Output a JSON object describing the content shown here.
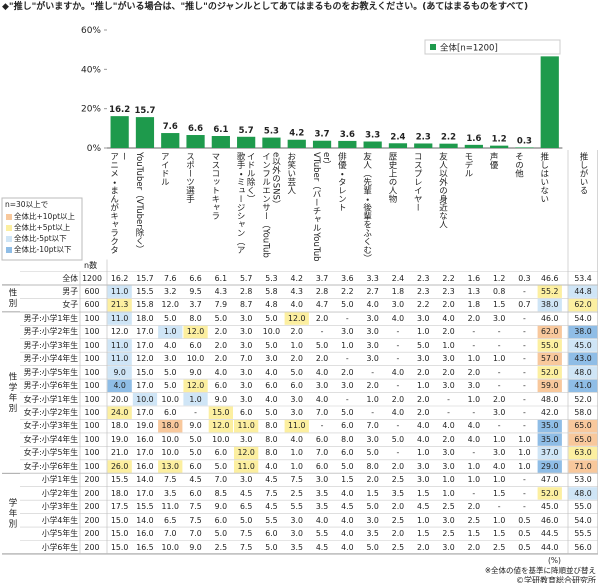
{
  "chart_data": {
    "type": "bar",
    "title": "◆\"推し\"がいますか。\"推し\"がいる場合は、\"推し\"のジャンルとしてあてはまるものをお教えください。(あてはまるものをすべて)",
    "categories": [
      "アニメ・まんがキャラクター",
      "YouTuber（VTuber除く）",
      "アイドル",
      "スポーツ選手",
      "マスコットキャラ",
      "歌手・ミュージシャン（アイドル除く）",
      "インフルエンサー（YouTube以外のSNS）",
      "お笑い芸人",
      "VTuber（バーチャルYouTuber）",
      "俳優・タレント",
      "友人（先輩・後輩をふくむ）",
      "歴史上の人物",
      "コスプレイヤー",
      "友人以外の身近な人",
      "モデル",
      "声優",
      "その他",
      "推しはいない"
    ],
    "series": [
      {
        "name": "全体[n=1200]",
        "color": "#1e9a4c",
        "values": [
          16.2,
          15.7,
          7.6,
          6.6,
          6.1,
          5.7,
          5.3,
          4.2,
          3.7,
          3.6,
          3.3,
          2.4,
          2.3,
          2.2,
          1.6,
          1.2,
          0.3,
          46.6
        ]
      }
    ],
    "ylim": [
      0,
      60
    ],
    "yticks": [
      {
        "value": 0,
        "label": "0%"
      },
      {
        "value": 20,
        "label": "20%"
      },
      {
        "value": 40,
        "label": "40%"
      },
      {
        "value": 60,
        "label": "60%"
      }
    ],
    "legend": "upper-right",
    "table": {
      "n_header": "n数",
      "extra_column": "推しがいる",
      "highlight_title": "n=30以上で",
      "highlight_items": [
        {
          "label": "全体比+10pt以上",
          "color": "#f8c89c",
          "threshold": 10
        },
        {
          "label": "全体比+5pt以上",
          "color": "#fcefa0",
          "threshold": 5
        },
        {
          "label": "全体比-5pt以下",
          "color": "#cfe5f6",
          "threshold": -5
        },
        {
          "label": "全体比-10pt以下",
          "color": "#8fbde6",
          "threshold": -10
        }
      ],
      "total_row": {
        "label": "全体",
        "n": "1200",
        "values": [
          "16.2",
          "15.7",
          "7.6",
          "6.6",
          "6.1",
          "5.7",
          "5.3",
          "4.2",
          "3.7",
          "3.6",
          "3.3",
          "2.4",
          "2.3",
          "2.2",
          "1.6",
          "1.2",
          "0.3",
          "46.6"
        ],
        "extra": "53.4"
      },
      "groups": [
        {
          "label": "性別",
          "rows": [
            {
              "label": "男子",
              "n": "600",
              "values": [
                "11.0",
                "15.5",
                "3.2",
                "9.5",
                "4.3",
                "2.8",
                "5.8",
                "4.3",
                "2.8",
                "2.2",
                "2.7",
                "1.8",
                "2.3",
                "2.3",
                "1.3",
                "0.8",
                "-",
                "55.2"
              ],
              "extra": "44.8"
            },
            {
              "label": "女子",
              "n": "600",
              "values": [
                "21.3",
                "15.8",
                "12.0",
                "3.7",
                "7.9",
                "8.7",
                "4.8",
                "4.0",
                "4.7",
                "5.0",
                "4.0",
                "3.0",
                "2.2",
                "2.0",
                "1.8",
                "1.5",
                "0.7",
                "38.0"
              ],
              "extra": "62.0"
            }
          ]
        },
        {
          "label": "性学年別",
          "rows": [
            {
              "label": "男子:小学1年生",
              "n": "100",
              "values": [
                "11.0",
                "18.0",
                "5.0",
                "8.0",
                "5.0",
                "3.0",
                "5.0",
                "12.0",
                "2.0",
                "-",
                "3.0",
                "4.0",
                "3.0",
                "4.0",
                "2.0",
                "3.0",
                "-",
                "46.0"
              ],
              "extra": "54.0"
            },
            {
              "label": "男子:小学2年生",
              "n": "100",
              "values": [
                "12.0",
                "17.0",
                "1.0",
                "12.0",
                "2.0",
                "3.0",
                "10.0",
                "2.0",
                "-",
                "3.0",
                "3.0",
                "-",
                "1.0",
                "2.0",
                "-",
                "-",
                "-",
                "62.0"
              ],
              "extra": "38.0"
            },
            {
              "label": "男子:小学3年生",
              "n": "100",
              "values": [
                "11.0",
                "17.0",
                "4.0",
                "6.0",
                "2.0",
                "3.0",
                "5.0",
                "1.0",
                "5.0",
                "1.0",
                "3.0",
                "-",
                "5.0",
                "1.0",
                "-",
                "-",
                "-",
                "55.0"
              ],
              "extra": "45.0"
            },
            {
              "label": "男子:小学4年生",
              "n": "100",
              "values": [
                "11.0",
                "12.0",
                "3.0",
                "10.0",
                "2.0",
                "7.0",
                "3.0",
                "2.0",
                "2.0",
                "-",
                "3.0",
                "-",
                "3.0",
                "3.0",
                "1.0",
                "1.0",
                "-",
                "57.0"
              ],
              "extra": "43.0"
            },
            {
              "label": "男子:小学5年生",
              "n": "100",
              "values": [
                "9.0",
                "15.0",
                "5.0",
                "9.0",
                "4.0",
                "3.0",
                "4.0",
                "5.0",
                "4.0",
                "2.0",
                "-",
                "4.0",
                "2.0",
                "2.0",
                "2.0",
                "-",
                "-",
                "52.0"
              ],
              "extra": "48.0"
            },
            {
              "label": "男子:小学6年生",
              "n": "100",
              "values": [
                "4.0",
                "17.0",
                "5.0",
                "12.0",
                "6.0",
                "3.0",
                "6.0",
                "6.0",
                "3.0",
                "3.0",
                "2.0",
                "-",
                "1.0",
                "3.0",
                "3.0",
                "-",
                "-",
                "59.0"
              ],
              "extra": "41.0"
            },
            {
              "label": "女子:小学1年生",
              "n": "100",
              "values": [
                "20.0",
                "10.0",
                "10.0",
                "1.0",
                "9.0",
                "3.0",
                "4.0",
                "3.0",
                "4.0",
                "-",
                "1.0",
                "2.0",
                "2.0",
                "-",
                "1.0",
                "2.0",
                "-",
                "48.0"
              ],
              "extra": "52.0"
            },
            {
              "label": "女子:小学2年生",
              "n": "100",
              "values": [
                "24.0",
                "17.0",
                "6.0",
                "-",
                "15.0",
                "6.0",
                "5.0",
                "3.0",
                "7.0",
                "5.0",
                "-",
                "4.0",
                "2.0",
                "-",
                "-",
                "3.0",
                "-",
                "42.0"
              ],
              "extra": "58.0"
            },
            {
              "label": "女子:小学3年生",
              "n": "100",
              "values": [
                "18.0",
                "19.0",
                "18.0",
                "9.0",
                "12.0",
                "11.0",
                "8.0",
                "11.0",
                "-",
                "6.0",
                "7.0",
                "-",
                "4.0",
                "4.0",
                "4.0",
                "-",
                "-",
                "35.0"
              ],
              "extra": "65.0"
            },
            {
              "label": "女子:小学4年生",
              "n": "100",
              "values": [
                "19.0",
                "16.0",
                "10.0",
                "5.0",
                "10.0",
                "3.0",
                "8.0",
                "4.0",
                "6.0",
                "8.0",
                "3.0",
                "5.0",
                "4.0",
                "2.0",
                "4.0",
                "1.0",
                "1.0",
                "35.0"
              ],
              "extra": "65.0"
            },
            {
              "label": "女子:小学5年生",
              "n": "100",
              "values": [
                "21.0",
                "17.0",
                "10.0",
                "5.0",
                "6.0",
                "12.0",
                "8.0",
                "1.0",
                "7.0",
                "6.0",
                "5.0",
                "-",
                "1.0",
                "3.0",
                "-",
                "3.0",
                "1.0",
                "37.0"
              ],
              "extra": "63.0"
            },
            {
              "label": "女子:小学6年生",
              "n": "100",
              "values": [
                "26.0",
                "16.0",
                "13.0",
                "6.0",
                "5.0",
                "11.0",
                "4.0",
                "1.0",
                "6.0",
                "5.0",
                "8.0",
                "2.0",
                "3.0",
                "3.0",
                "1.0",
                "4.0",
                "1.0",
                "29.0"
              ],
              "extra": "71.0"
            }
          ]
        },
        {
          "label": "学年別",
          "rows": [
            {
              "label": "小学1年生",
              "n": "200",
              "values": [
                "15.5",
                "14.0",
                "7.5",
                "4.5",
                "7.0",
                "3.0",
                "4.5",
                "7.5",
                "3.0",
                "1.5",
                "2.0",
                "2.5",
                "3.0",
                "1.0",
                "1.0",
                "1.0",
                "-",
                "47.0"
              ],
              "extra": "53.0"
            },
            {
              "label": "小学2年生",
              "n": "200",
              "values": [
                "18.0",
                "17.0",
                "3.5",
                "6.0",
                "8.5",
                "4.5",
                "7.5",
                "2.5",
                "3.5",
                "4.0",
                "1.5",
                "3.5",
                "1.5",
                "1.0",
                "-",
                "1.5",
                "-",
                "52.0"
              ],
              "extra": "48.0"
            },
            {
              "label": "小学3年生",
              "n": "200",
              "values": [
                "17.5",
                "15.5",
                "11.0",
                "7.5",
                "9.0",
                "6.5",
                "4.5",
                "5.5",
                "3.5",
                "4.5",
                "5.0",
                "2.0",
                "4.5",
                "2.5",
                "2.0",
                "-",
                "-",
                "45.0"
              ],
              "extra": "55.0"
            },
            {
              "label": "小学4年生",
              "n": "200",
              "values": [
                "15.0",
                "14.0",
                "6.5",
                "7.5",
                "6.0",
                "5.0",
                "5.5",
                "3.0",
                "4.0",
                "4.0",
                "3.0",
                "2.5",
                "1.0",
                "3.0",
                "2.5",
                "1.0",
                "0.5",
                "46.0"
              ],
              "extra": "54.0"
            },
            {
              "label": "小学5年生",
              "n": "200",
              "values": [
                "15.0",
                "16.0",
                "7.0",
                "7.0",
                "5.0",
                "7.5",
                "6.0",
                "3.0",
                "5.5",
                "4.0",
                "3.5",
                "2.0",
                "1.5",
                "2.5",
                "1.5",
                "1.5",
                "0.5",
                "44.5"
              ],
              "extra": "55.5"
            },
            {
              "label": "小学6年生",
              "n": "200",
              "values": [
                "15.0",
                "16.5",
                "10.0",
                "9.0",
                "2.5",
                "7.5",
                "5.0",
                "3.5",
                "4.5",
                "4.0",
                "5.0",
                "2.5",
                "2.0",
                "3.0",
                "2.0",
                "2.5",
                "0.5",
                "44.0"
              ],
              "extra": "56.0"
            }
          ]
        }
      ],
      "unit": "(%)",
      "note": "※全体の値を基準に降順並び替え",
      "copyright": "©学研教育総合研究所"
    }
  }
}
